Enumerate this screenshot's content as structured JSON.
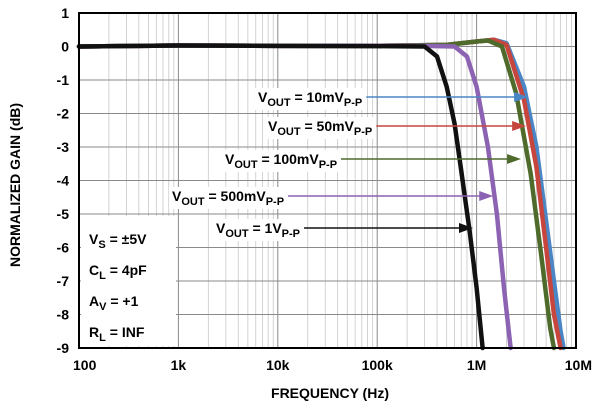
{
  "chart_data": {
    "type": "line",
    "xlabel": "FREQUENCY (Hz)",
    "ylabel": "NORMALIZED GAIN (dB)",
    "xscale": "log",
    "xlim": [
      100,
      10000000
    ],
    "ylim": [
      -9,
      1
    ],
    "grid": true,
    "x_ticks": [
      {
        "value": 100,
        "label": "100"
      },
      {
        "value": 1000,
        "label": "1k"
      },
      {
        "value": 10000,
        "label": "10k"
      },
      {
        "value": 100000,
        "label": "100k"
      },
      {
        "value": 1000000,
        "label": "1M"
      },
      {
        "value": 10000000,
        "label": "10M"
      }
    ],
    "y_ticks": [
      1,
      0,
      -1,
      -2,
      -3,
      -4,
      -5,
      -6,
      -7,
      -8,
      -9
    ],
    "conditions": [
      {
        "main": "V",
        "sub": "S",
        "rest": " = ±5V"
      },
      {
        "main": "C",
        "sub": "L",
        "rest": " = 4pF"
      },
      {
        "main": "A",
        "sub": "V",
        "rest": " = +1"
      },
      {
        "main": "R",
        "sub": "L",
        "rest": " = INF"
      }
    ],
    "series": [
      {
        "color": "#4a86c5",
        "label": {
          "pre": "V",
          "sub1": "OUT",
          "mid": " = 10mV",
          "sub2": "P-P"
        },
        "points": [
          [
            100,
            0.0
          ],
          [
            1000,
            0.03
          ],
          [
            10000,
            0.02
          ],
          [
            100000,
            0.02
          ],
          [
            500000,
            0.05
          ],
          [
            1000000,
            0.15
          ],
          [
            1500000,
            0.2
          ],
          [
            2000000,
            0.1
          ],
          [
            3000000,
            -1.2
          ],
          [
            4000000,
            -3.0
          ],
          [
            5000000,
            -5.2
          ],
          [
            6000000,
            -7.0
          ],
          [
            7000000,
            -8.5
          ],
          [
            7500000,
            -9.0
          ]
        ]
      },
      {
        "color": "#c6463e",
        "label": {
          "pre": "V",
          "sub1": "OUT",
          "mid": " = 50mV",
          "sub2": "P-P"
        },
        "points": [
          [
            100,
            0.0
          ],
          [
            1000,
            0.03
          ],
          [
            10000,
            0.02
          ],
          [
            100000,
            0.02
          ],
          [
            500000,
            0.05
          ],
          [
            1000000,
            0.15
          ],
          [
            1500000,
            0.2
          ],
          [
            2000000,
            0.05
          ],
          [
            3000000,
            -1.6
          ],
          [
            4000000,
            -3.6
          ],
          [
            5000000,
            -6.0
          ],
          [
            6000000,
            -8.0
          ],
          [
            7000000,
            -9.0
          ]
        ]
      },
      {
        "color": "#4e6b2c",
        "label": {
          "pre": "V",
          "sub1": "OUT",
          "mid": " = 100mV",
          "sub2": "P-P"
        },
        "points": [
          [
            100,
            0.0
          ],
          [
            1000,
            0.03
          ],
          [
            10000,
            0.02
          ],
          [
            100000,
            0.02
          ],
          [
            500000,
            0.05
          ],
          [
            1000000,
            0.15
          ],
          [
            1300000,
            0.18
          ],
          [
            1800000,
            0.0
          ],
          [
            2500000,
            -1.4
          ],
          [
            3500000,
            -3.8
          ],
          [
            4500000,
            -6.3
          ],
          [
            5500000,
            -8.4
          ],
          [
            6000000,
            -9.0
          ]
        ]
      },
      {
        "color": "#8c62b3",
        "label": {
          "pre": "V",
          "sub1": "OUT",
          "mid": " = 500mV",
          "sub2": "P-P"
        },
        "points": [
          [
            100,
            0.0
          ],
          [
            1000,
            0.03
          ],
          [
            10000,
            0.02
          ],
          [
            100000,
            0.02
          ],
          [
            300000,
            0.02
          ],
          [
            600000,
            0.0
          ],
          [
            800000,
            -0.3
          ],
          [
            1000000,
            -1.2
          ],
          [
            1300000,
            -3.0
          ],
          [
            1600000,
            -5.0
          ],
          [
            1900000,
            -7.3
          ],
          [
            2200000,
            -9.0
          ]
        ]
      },
      {
        "color": "#111111",
        "label": {
          "pre": "V",
          "sub1": "OUT",
          "mid": " = 1V",
          "sub2": "P-P"
        },
        "points": [
          [
            100,
            0.0
          ],
          [
            1000,
            0.03
          ],
          [
            10000,
            0.02
          ],
          [
            100000,
            0.01
          ],
          [
            300000,
            0.0
          ],
          [
            400000,
            -0.3
          ],
          [
            500000,
            -1.2
          ],
          [
            600000,
            -2.3
          ],
          [
            700000,
            -3.7
          ],
          [
            850000,
            -5.5
          ],
          [
            1000000,
            -7.2
          ],
          [
            1150000,
            -9.0
          ]
        ]
      }
    ],
    "annotations": [
      {
        "series": 0,
        "text_x": 258,
        "y": 102,
        "arrow_to_freq": 3300000,
        "arrow_y": -1.7
      },
      {
        "series": 1,
        "text_x": 268,
        "y": 131,
        "arrow_to_freq": 3150000,
        "arrow_y": -2.5
      },
      {
        "series": 2,
        "text_x": 225,
        "y": 164,
        "arrow_to_freq": 2800000,
        "arrow_y": -3.5
      },
      {
        "series": 3,
        "text_x": 172,
        "y": 201,
        "arrow_to_freq": 1470000,
        "arrow_y": -4.6
      },
      {
        "series": 4,
        "text_x": 216,
        "y": 233,
        "arrow_to_freq": 920000,
        "arrow_y": -5.5
      }
    ]
  }
}
